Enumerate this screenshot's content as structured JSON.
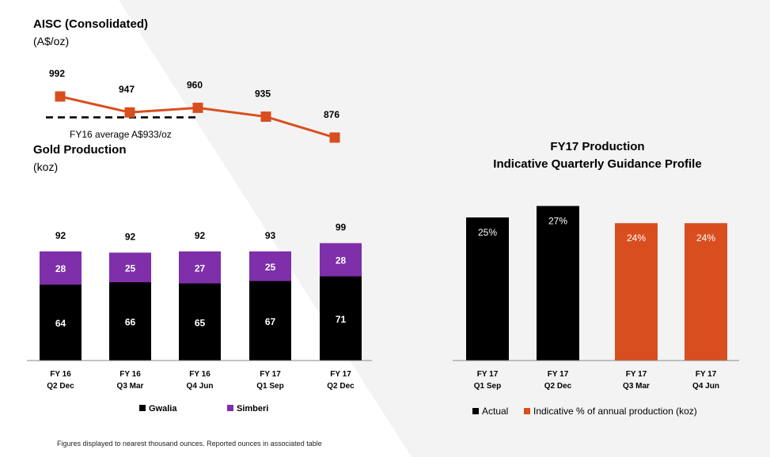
{
  "chart_data": [
    {
      "type": "line",
      "title": "AISC (Consolidated)",
      "ylabel": "(A$/oz)",
      "categories": [
        "FY 16 Q2 Dec",
        "FY 16 Q3 Mar",
        "FY 16 Q4 Jun",
        "FY 17 Q1 Sep",
        "FY 17 Q2 Dec"
      ],
      "values": [
        992,
        947,
        960,
        935,
        876
      ],
      "color": "#d94e1f",
      "reference_line": {
        "label": "FY16 average A$933/oz",
        "value": 933,
        "style": "dashed",
        "color": "#000000"
      },
      "ylim": [
        860,
        1000
      ]
    },
    {
      "type": "bar",
      "stacked": true,
      "title": "Gold Production",
      "ylabel": "(koz)",
      "categories": [
        {
          "line1": "FY 16",
          "line2": "Q2 Dec"
        },
        {
          "line1": "FY 16",
          "line2": "Q3 Mar"
        },
        {
          "line1": "FY 16",
          "line2": "Q4 Jun"
        },
        {
          "line1": "FY 17",
          "line2": "Q1 Sep"
        },
        {
          "line1": "FY 17",
          "line2": "Q2 Dec"
        }
      ],
      "series": [
        {
          "name": "Gwalia",
          "values": [
            64,
            66,
            65,
            67,
            71
          ],
          "color": "#000000"
        },
        {
          "name": "Simberi",
          "values": [
            28,
            25,
            27,
            25,
            28
          ],
          "color": "#7e2fa9"
        }
      ],
      "totals": [
        92,
        92,
        92,
        93,
        99
      ],
      "ylim": [
        0,
        100
      ],
      "legend": "bottom"
    },
    {
      "type": "bar",
      "title": "FY17 Production",
      "subtitle": "Indicative Quarterly Guidance Profile",
      "categories": [
        {
          "line1": "FY 17",
          "line2": "Q1 Sep"
        },
        {
          "line1": "FY 17",
          "line2": "Q2 Dec"
        },
        {
          "line1": "FY 17",
          "line2": "Q3 Mar"
        },
        {
          "line1": "FY 17",
          "line2": "Q4 Jun"
        }
      ],
      "values": [
        25,
        27,
        24,
        24
      ],
      "value_labels": [
        "25%",
        "27%",
        "24%",
        "24%"
      ],
      "bar_series": [
        "Actual",
        "Actual",
        "Indicative % of annual production (koz)",
        "Indicative % of annual production (koz)"
      ],
      "series": [
        {
          "name": "Actual",
          "color": "#000000"
        },
        {
          "name": "Indicative % of annual production (koz)",
          "color": "#d94e1f"
        }
      ],
      "ylim": [
        0,
        27
      ],
      "legend": "bottom"
    }
  ],
  "footnote": "Figures displayed to nearest thousand ounces.  Reported ounces in associated table"
}
